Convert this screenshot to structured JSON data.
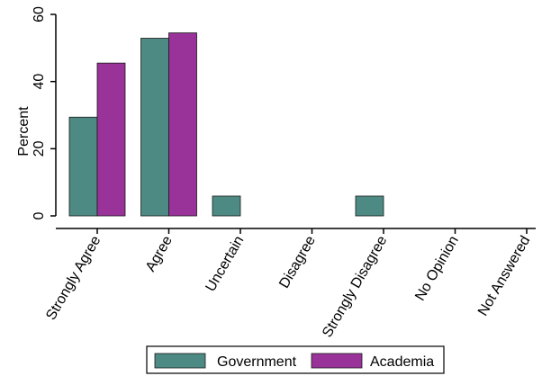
{
  "chart_data": {
    "type": "bar",
    "title": "",
    "xlabel": "",
    "ylabel": "Percent",
    "ylim": [
      0,
      60
    ],
    "yticks": [
      0,
      20,
      40,
      60
    ],
    "categories": [
      "Strongly Agree",
      "Agree",
      "Uncertain",
      "Disagree",
      "Strongly Disagree",
      "No Opinion",
      "Not Answered"
    ],
    "series": [
      {
        "name": "Government",
        "color": "#4e8a84",
        "values": [
          29.4,
          52.9,
          5.9,
          0,
          5.9,
          0,
          0
        ]
      },
      {
        "name": "Academia",
        "color": "#993399",
        "values": [
          45.5,
          54.5,
          0,
          0,
          0,
          0,
          0
        ]
      }
    ],
    "legend_position": "bottom",
    "grid": false
  }
}
